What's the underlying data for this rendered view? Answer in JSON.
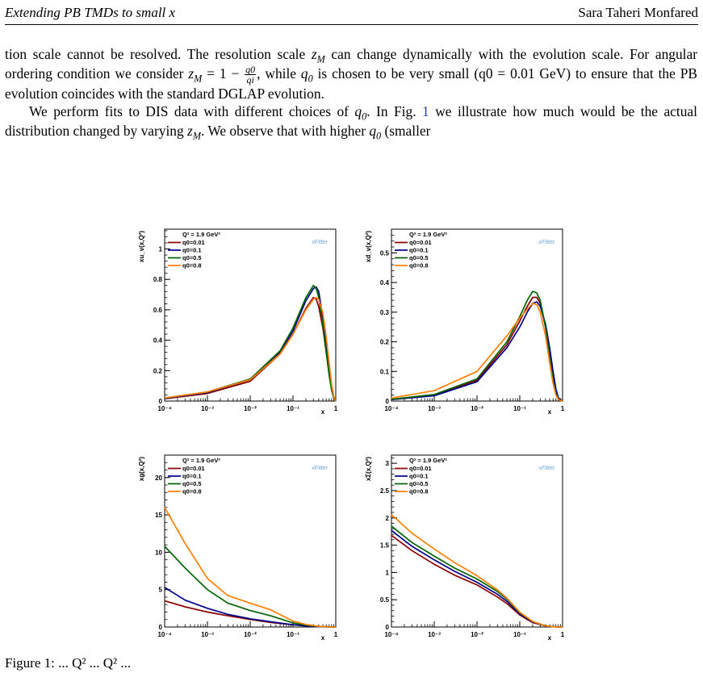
{
  "header": {
    "title": "Extending PB TMDs to small x",
    "author": "Sara Taheri Monfared"
  },
  "paragraph1": {
    "line1_a": "tion scale cannot be resolved. The resolution scale ",
    "zm": "z",
    "zm_sub": "M",
    "line1_b": " can change dynamically with the evolution",
    "line2_a": "scale. For angular ordering condition we consider ",
    "eq_a": " = 1 − ",
    "frac_num": "q0",
    "frac_den": "qi",
    "line2_b": ", while ",
    "q0": "q",
    "q0_sub": "0",
    "line2_c": " is chosen to be very small",
    "line3": "(q0 = 0.01 GeV) to ensure that the PB evolution coincides with the standard DGLAP evolution."
  },
  "paragraph2": {
    "a": "We perform fits to DIS data with different choices of ",
    "b": ". In Fig. ",
    "fig_ref": "1",
    "c": " we illustrate how much would be the actual distribution changed by varying ",
    "d": ". We observe that with higher ",
    "e": " (smaller"
  },
  "colors": {
    "q0=0.01": "#8b0000",
    "q0=0.1": "#00008b",
    "q0=0.5": "#006400",
    "q0=0.8": "#ff7f00",
    "xfitter_logo": "#6fa8dc"
  },
  "caption_fragment": "Figure 1: ... Q² ... Q² ...",
  "chart_data": [
    {
      "type": "line",
      "ylabel": "xu_v(x,Q²)",
      "xlabel": "x",
      "legend_header": "Q² = 1.9 GeV²",
      "logo": "xFitter",
      "xscale": "log",
      "xlim": [
        0.0001,
        1
      ],
      "ylim": [
        0,
        1.13
      ],
      "yticks": [
        "0",
        "0.2",
        "0.4",
        "0.6",
        "0.8",
        "1"
      ],
      "xticks": [
        "10⁻⁴",
        "10⁻³",
        "10⁻²",
        "10⁻¹",
        "1"
      ],
      "series": [
        {
          "name": "q0=0.01",
          "x": [
            0.0001,
            0.001,
            0.01,
            0.05,
            0.1,
            0.2,
            0.3,
            0.35,
            0.4,
            0.5,
            0.6,
            0.7,
            0.8,
            0.9,
            1.0
          ],
          "y": [
            0.015,
            0.05,
            0.13,
            0.31,
            0.44,
            0.61,
            0.68,
            0.67,
            0.62,
            0.48,
            0.32,
            0.18,
            0.08,
            0.02,
            0
          ]
        },
        {
          "name": "q0=0.1",
          "x": [
            0.0001,
            0.001,
            0.01,
            0.05,
            0.1,
            0.2,
            0.3,
            0.35,
            0.4,
            0.5,
            0.6,
            0.7,
            0.8,
            0.9,
            1.0
          ],
          "y": [
            0.018,
            0.055,
            0.14,
            0.32,
            0.46,
            0.66,
            0.74,
            0.75,
            0.72,
            0.55,
            0.37,
            0.2,
            0.08,
            0.02,
            0
          ]
        },
        {
          "name": "q0=0.5",
          "x": [
            0.0001,
            0.001,
            0.01,
            0.05,
            0.1,
            0.2,
            0.3,
            0.35,
            0.4,
            0.5,
            0.6,
            0.7,
            0.8,
            0.9,
            1.0
          ],
          "y": [
            0.02,
            0.06,
            0.145,
            0.33,
            0.48,
            0.68,
            0.76,
            0.74,
            0.68,
            0.5,
            0.32,
            0.17,
            0.07,
            0.02,
            0
          ]
        },
        {
          "name": "q0=0.8",
          "x": [
            0.0001,
            0.001,
            0.01,
            0.05,
            0.1,
            0.2,
            0.3,
            0.35,
            0.4,
            0.5,
            0.6,
            0.7,
            0.8,
            0.9,
            1.0
          ],
          "y": [
            0.02,
            0.06,
            0.14,
            0.31,
            0.44,
            0.6,
            0.67,
            0.68,
            0.67,
            0.58,
            0.42,
            0.25,
            0.11,
            0.03,
            0
          ]
        }
      ]
    },
    {
      "type": "line",
      "ylabel": "xd_v(x,Q²)",
      "xlabel": "x",
      "legend_header": "Q² = 1.9 GeV²",
      "logo": "xFitter",
      "xscale": "log",
      "xlim": [
        0.0001,
        1
      ],
      "ylim": [
        0,
        0.58
      ],
      "yticks": [
        "0",
        "0.1",
        "0.2",
        "0.3",
        "0.4",
        "0.5"
      ],
      "xticks": [
        "10⁻⁴",
        "10⁻³",
        "10⁻²",
        "10⁻¹",
        "1"
      ],
      "series": [
        {
          "name": "q0=0.01",
          "x": [
            0.0001,
            0.001,
            0.01,
            0.05,
            0.1,
            0.15,
            0.2,
            0.25,
            0.3,
            0.4,
            0.5,
            0.6,
            0.7,
            0.8,
            1.0
          ],
          "y": [
            0.005,
            0.02,
            0.07,
            0.19,
            0.27,
            0.32,
            0.35,
            0.35,
            0.33,
            0.25,
            0.16,
            0.08,
            0.03,
            0.01,
            0
          ]
        },
        {
          "name": "q0=0.1",
          "x": [
            0.0001,
            0.001,
            0.01,
            0.05,
            0.1,
            0.15,
            0.2,
            0.25,
            0.3,
            0.4,
            0.5,
            0.6,
            0.7,
            0.8,
            1.0
          ],
          "y": [
            0.005,
            0.018,
            0.065,
            0.18,
            0.25,
            0.3,
            0.33,
            0.335,
            0.32,
            0.26,
            0.18,
            0.1,
            0.04,
            0.01,
            0
          ]
        },
        {
          "name": "q0=0.5",
          "x": [
            0.0001,
            0.001,
            0.01,
            0.05,
            0.1,
            0.15,
            0.2,
            0.25,
            0.3,
            0.4,
            0.5,
            0.6,
            0.7,
            0.8,
            1.0
          ],
          "y": [
            0.006,
            0.022,
            0.075,
            0.2,
            0.285,
            0.34,
            0.37,
            0.365,
            0.34,
            0.25,
            0.15,
            0.07,
            0.025,
            0.005,
            0
          ]
        },
        {
          "name": "q0=0.8",
          "x": [
            0.0001,
            0.001,
            0.01,
            0.05,
            0.1,
            0.15,
            0.2,
            0.25,
            0.3,
            0.4,
            0.5,
            0.6,
            0.7,
            0.8,
            1.0
          ],
          "y": [
            0.01,
            0.035,
            0.1,
            0.22,
            0.28,
            0.31,
            0.33,
            0.325,
            0.3,
            0.22,
            0.13,
            0.06,
            0.02,
            0.005,
            0
          ]
        }
      ]
    },
    {
      "type": "line",
      "ylabel": "xg(x,Q²)",
      "xlabel": "x",
      "legend_header": "Q² = 1.9 GeV²",
      "logo": "xFitter",
      "xscale": "log",
      "xlim": [
        0.0001,
        1
      ],
      "ylim": [
        0,
        23
      ],
      "yticks": [
        "0",
        "5",
        "10",
        "15",
        "20"
      ],
      "xticks": [
        "10⁻⁴",
        "10⁻³",
        "10⁻²",
        "10⁻¹",
        "1"
      ],
      "series": [
        {
          "name": "q0=0.01",
          "x": [
            0.0001,
            0.0003,
            0.001,
            0.003,
            0.01,
            0.03,
            0.1,
            0.2,
            0.4,
            0.7,
            1.0
          ],
          "y": [
            3.5,
            2.7,
            2.0,
            1.5,
            1.0,
            0.6,
            0.3,
            0.15,
            0.05,
            0.01,
            0
          ]
        },
        {
          "name": "q0=0.1",
          "x": [
            0.0001,
            0.0003,
            0.001,
            0.003,
            0.01,
            0.03,
            0.1,
            0.2,
            0.4,
            0.7,
            1.0
          ],
          "y": [
            5.3,
            3.6,
            2.5,
            1.7,
            1.1,
            0.7,
            0.3,
            0.15,
            0.05,
            0.01,
            0
          ]
        },
        {
          "name": "q0=0.5",
          "x": [
            0.0001,
            0.0003,
            0.001,
            0.003,
            0.01,
            0.03,
            0.1,
            0.2,
            0.4,
            0.7,
            1.0
          ],
          "y": [
            10.8,
            7.9,
            5.0,
            3.2,
            2.2,
            1.5,
            0.55,
            0.25,
            0.08,
            0.01,
            0
          ]
        },
        {
          "name": "q0=0.8",
          "x": [
            0.0001,
            0.0003,
            0.001,
            0.003,
            0.01,
            0.03,
            0.1,
            0.2,
            0.4,
            0.7,
            1.0
          ],
          "y": [
            16.0,
            11.2,
            6.5,
            4.2,
            3.2,
            2.3,
            0.8,
            0.35,
            0.1,
            0.01,
            0
          ]
        }
      ]
    },
    {
      "type": "line",
      "ylabel": "xΣ(x,Q²)",
      "xlabel": "x",
      "legend_header": "Q² = 1.9 GeV²",
      "logo": "xFitter",
      "xscale": "log",
      "xlim": [
        0.0001,
        1
      ],
      "ylim": [
        0,
        3.15
      ],
      "yticks": [
        "0",
        "0.5",
        "1",
        "1.5",
        "2",
        "2.5",
        "3"
      ],
      "xticks": [
        "10⁻⁴",
        "10⁻³",
        "10⁻²",
        "10⁻¹",
        "1"
      ],
      "series": [
        {
          "name": "q0=0.01",
          "x": [
            0.0001,
            0.0003,
            0.001,
            0.003,
            0.01,
            0.03,
            0.05,
            0.1,
            0.2,
            0.4,
            0.7,
            1.0
          ],
          "y": [
            1.68,
            1.4,
            1.15,
            0.95,
            0.77,
            0.55,
            0.43,
            0.22,
            0.08,
            0.02,
            0.003,
            0
          ]
        },
        {
          "name": "q0=0.1",
          "x": [
            0.0001,
            0.0003,
            0.001,
            0.003,
            0.01,
            0.03,
            0.05,
            0.1,
            0.2,
            0.4,
            0.7,
            1.0
          ],
          "y": [
            1.77,
            1.48,
            1.23,
            1.02,
            0.82,
            0.6,
            0.47,
            0.24,
            0.09,
            0.02,
            0.003,
            0
          ]
        },
        {
          "name": "q0=0.5",
          "x": [
            0.0001,
            0.0003,
            0.001,
            0.003,
            0.01,
            0.03,
            0.05,
            0.1,
            0.2,
            0.4,
            0.7,
            1.0
          ],
          "y": [
            1.85,
            1.55,
            1.3,
            1.08,
            0.88,
            0.65,
            0.51,
            0.26,
            0.1,
            0.02,
            0.003,
            0
          ]
        },
        {
          "name": "q0=0.8",
          "x": [
            0.0001,
            0.0003,
            0.001,
            0.003,
            0.01,
            0.03,
            0.05,
            0.1,
            0.2,
            0.4,
            0.7,
            1.0
          ],
          "y": [
            2.06,
            1.72,
            1.43,
            1.18,
            0.94,
            0.68,
            0.53,
            0.27,
            0.1,
            0.02,
            0.003,
            0
          ]
        }
      ]
    }
  ]
}
